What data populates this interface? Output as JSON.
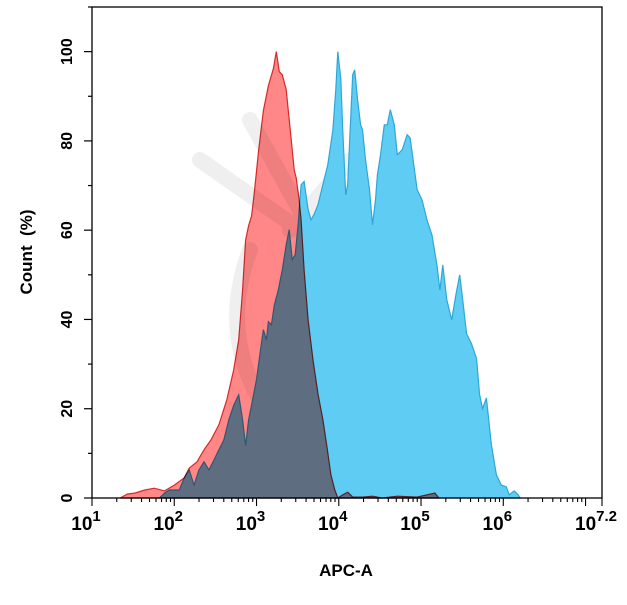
{
  "chart_data": {
    "type": "area",
    "title": "",
    "xlabel": "APC-A",
    "ylabel": "Count  (%)",
    "x_scale": "log",
    "xlim": [
      10,
      15848932
    ],
    "ylim": [
      0,
      110
    ],
    "x_ticks": [
      {
        "value": 10,
        "base": "10",
        "exp": "1"
      },
      {
        "value": 100,
        "base": "10",
        "exp": "2"
      },
      {
        "value": 1000,
        "base": "10",
        "exp": "3"
      },
      {
        "value": 10000,
        "base": "10",
        "exp": "4"
      },
      {
        "value": 100000,
        "base": "10",
        "exp": "5"
      },
      {
        "value": 1000000,
        "base": "10",
        "exp": "6"
      },
      {
        "value": 15848932,
        "base": "10",
        "exp": "7.2"
      }
    ],
    "y_ticks": [
      "0",
      "20",
      "40",
      "60",
      "80",
      "100"
    ],
    "grid": false,
    "legend": "none",
    "series": [
      {
        "color": "#5fcdf3",
        "stroke": "#2ea7d6",
        "x": [
          66,
          76,
          87,
          115,
          132,
          152,
          174,
          200,
          230,
          264,
          303,
          349,
          400,
          460,
          528,
          607,
          678,
          736,
          801,
          895,
          1000,
          1117,
          1213,
          1318,
          1396,
          1517,
          1648,
          1842,
          2057,
          2297,
          2500,
          2716,
          2951,
          3206,
          3484,
          3784,
          4236,
          4600,
          5000,
          5585,
          6412,
          7362,
          8472,
          9204,
          9727,
          10570,
          11170,
          12140,
          12830,
          13580,
          14750,
          15600,
          16950,
          18410,
          19450,
          21150,
          23610,
          25700,
          27920,
          29510,
          32060,
          35810,
          38910,
          42360,
          47320,
          51400,
          59020,
          67760,
          73620,
          80170,
          89500,
          102800,
          118100,
          135800,
          156000,
          169400,
          184100,
          205700,
          236200,
          264000,
          295100,
          320600,
          358100,
          411300,
          473200,
          514000,
          558500,
          623700,
          716100,
          824100,
          946200,
          1087000,
          1181000,
          1358000,
          1517000,
          1603000
        ],
        "y": [
          0,
          1.1,
          1.8,
          1.8,
          4.5,
          6.3,
          2.9,
          6.3,
          8.1,
          6.3,
          8.5,
          10.8,
          13,
          17.5,
          20.8,
          23.1,
          17.5,
          11.7,
          17.5,
          22,
          26.5,
          33.2,
          37.7,
          35.4,
          39.5,
          38.8,
          43.3,
          46.6,
          51.1,
          56.7,
          60.1,
          53.4,
          54.5,
          61.2,
          70.2,
          70.9,
          64.6,
          62.3,
          63.5,
          65.7,
          70.2,
          74.7,
          82.5,
          91.5,
          100,
          93.9,
          82.7,
          67.9,
          70.2,
          80.3,
          94.8,
          95.9,
          89.2,
          83.6,
          82.5,
          75.8,
          69.1,
          61.2,
          66.8,
          72.4,
          76.7,
          83.6,
          83.6,
          87,
          83.6,
          76.9,
          78,
          81.4,
          80.7,
          75.8,
          69.1,
          66.8,
          62.3,
          58.9,
          52.2,
          46.6,
          52.2,
          44.4,
          39.9,
          45.3,
          50,
          44.4,
          36.8,
          34.5,
          31.2,
          23.3,
          20,
          22.4,
          11.9,
          5.2,
          2.9,
          2.5,
          0.7,
          1.6,
          0.7,
          0
        ]
      },
      {
        "color": "#ff7a7a",
        "stroke": "#d42a2a",
        "x": [
          22,
          27,
          33,
          44,
          57,
          76,
          100,
          132,
          152,
          189,
          230,
          279,
          349,
          435,
          528,
          607,
          678,
          736,
          801,
          871,
          946,
          1057,
          1213,
          1396,
          1603,
          1742,
          1893,
          2057,
          2297,
          2430,
          2642,
          2871,
          3034,
          3297,
          3484,
          3784,
          4236,
          4864,
          5585,
          6412,
          7161,
          8017,
          8954,
          9727,
          11170,
          12830,
          14750,
          19450,
          25700,
          33880,
          51400,
          89500,
          147600,
          164800
        ],
        "y": [
          0,
          0.9,
          1.1,
          1.8,
          2.2,
          1.6,
          2.9,
          4.5,
          6.7,
          8.1,
          10.8,
          13,
          16.4,
          22,
          28.7,
          35.4,
          46.6,
          57.8,
          61,
          63.2,
          68.8,
          77.6,
          86.8,
          92.4,
          96.2,
          100,
          95.5,
          94.8,
          91.5,
          87,
          80.3,
          73.5,
          71.7,
          66.8,
          62.3,
          51.1,
          39.9,
          30.9,
          23.3,
          17.5,
          11.7,
          5.2,
          1.8,
          0,
          0.7,
          1.3,
          0.2,
          0.2,
          0.4,
          0,
          0.4,
          0.2,
          1.1,
          0
        ]
      }
    ]
  }
}
